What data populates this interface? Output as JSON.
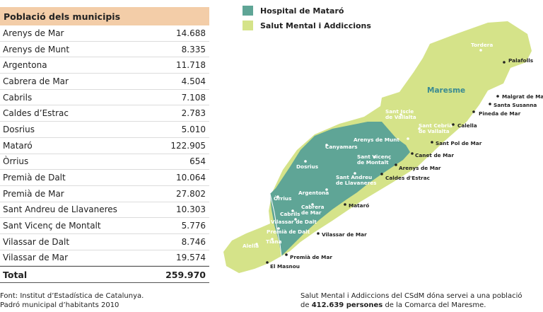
{
  "table": {
    "header": "Població dels municipis",
    "rows": [
      {
        "name": "Arenys de Mar",
        "value": "14.688"
      },
      {
        "name": "Arenys de Munt",
        "value": "8.335"
      },
      {
        "name": "Argentona",
        "value": "11.718"
      },
      {
        "name": "Cabrera de Mar",
        "value": "4.504"
      },
      {
        "name": "Cabrils",
        "value": "7.108"
      },
      {
        "name": "Caldes d’Estrac",
        "value": "2.783"
      },
      {
        "name": "Dosrius",
        "value": "5.010"
      },
      {
        "name": "Mataró",
        "value": "122.905"
      },
      {
        "name": "Òrrius",
        "value": "654"
      },
      {
        "name": "Premià de Dalt",
        "value": "10.064"
      },
      {
        "name": "Premià de Mar",
        "value": "27.802"
      },
      {
        "name": "Sant Andreu de Llavaneres",
        "value": "10.303"
      },
      {
        "name": "Sant Vicenç de Montalt",
        "value": "5.776"
      },
      {
        "name": "Vilassar de Dalt",
        "value": "8.746"
      },
      {
        "name": "Vilassar de Mar",
        "value": "19.574"
      }
    ],
    "total_label": "Total",
    "total_value": "259.970"
  },
  "source": {
    "line1": "Font: Institut d’Estadística de Catalunya.",
    "line2": "Padró municipal d’habitants 2010"
  },
  "legend": [
    {
      "label": "Hospital de Mataró",
      "color": "#5fa596"
    },
    {
      "label": "Salut Mental i Addiccions",
      "color": "#d5e389"
    }
  ],
  "map": {
    "region_label": "Maresme",
    "colors": {
      "hospital": "#5fa596",
      "salut": "#d5e389"
    },
    "towns_white": [
      "Tordera",
      "Maresme",
      "Sant Iscle de Vallalta",
      "Sant Cebrià de Vallalta",
      "Arenys de Munt",
      "Canyamars",
      "Sant Vicenç de Montalt",
      "Dosrius",
      "Sant Andreu de Llavaneres",
      "Argentona",
      "Òrrius",
      "Cabrils",
      "Cabrera de Mar",
      "Vilassar de Dalt",
      "Premià de Dalt",
      "Tiana",
      "Alella"
    ],
    "towns_dark": [
      "Palafolls",
      "Malgrat de Mar",
      "Santa Susanna",
      "Pineda de Mar",
      "Calella",
      "Sant Pol de Mar",
      "Canet de Mar",
      "Arenys de Mar",
      "Caldes d'Estrac",
      "Mataró",
      "Vilassar de Mar",
      "Premià de Mar",
      "El Masnou"
    ]
  },
  "note": {
    "line1": "Salut Mental i Addiccions del CSdM dóna servei a una població",
    "line2_prefix": "de ",
    "line2_bold": "412.639 persones",
    "line2_suffix": " de la Comarca del Maresme."
  }
}
